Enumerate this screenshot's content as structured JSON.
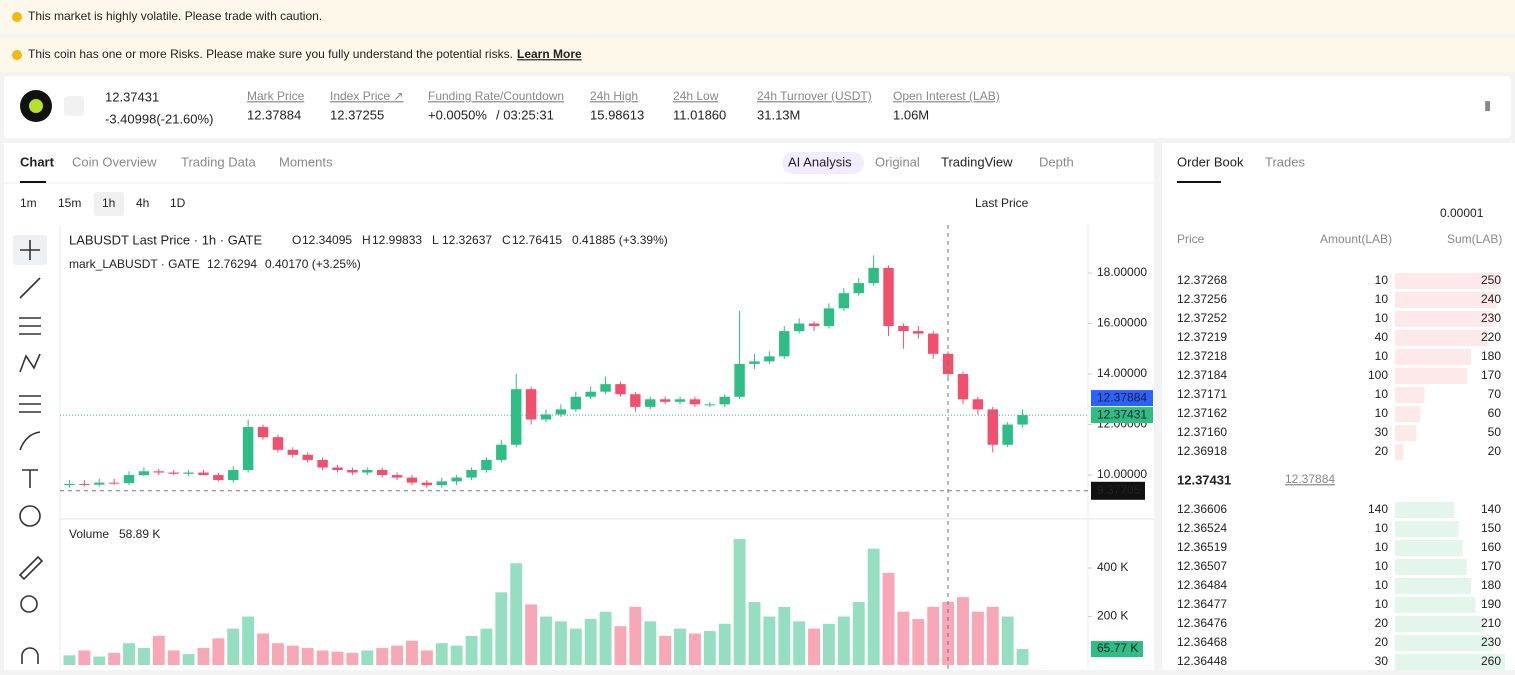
{
  "banners": {
    "volatile": "This market is highly volatile. Please trade with caution.",
    "risk": "This coin has one or more Risks. Please make sure you fully understand the potential risks.",
    "learn_more": "Learn More"
  },
  "ticker": {
    "price": "12.37431",
    "change": "-3.40998(-21.60%)",
    "stats": [
      {
        "label": "Mark Price",
        "value": "12.37884"
      },
      {
        "label": "Index Price ↗",
        "value": "12.37255"
      },
      {
        "label": "Funding Rate/Countdown",
        "value": "+0.0050%",
        "extra": "/ 03:25:31"
      },
      {
        "label": "24h High",
        "value": "15.98613"
      },
      {
        "label": "24h Low",
        "value": "11.01860"
      },
      {
        "label": "24h Turnover (USDT)",
        "value": "31.13M"
      },
      {
        "label": "Open Interest (LAB)",
        "value": "1.06M"
      }
    ]
  },
  "tabs": [
    "Chart",
    "Coin Overview",
    "Trading Data",
    "Moments"
  ],
  "views": [
    "AI Analysis",
    "Original",
    "TradingView",
    "Depth"
  ],
  "intervals": [
    "1m",
    "15m",
    "1h",
    "4h",
    "1D"
  ],
  "price_source": "Last Price",
  "legend": {
    "title": "LABUSDT Last Price · 1h · GATE",
    "ohlc": [
      {
        "key": "O",
        "value": "12.34095"
      },
      {
        "key": "H",
        "value": "12.99833"
      },
      {
        "key": "L",
        "value": "12.32637"
      },
      {
        "key": "C",
        "value": "12.76415"
      }
    ],
    "change": "0.41885 (+3.39%)",
    "mark": "mark_LABUSDT · GATE",
    "mark_value": "12.76294",
    "mark_change": "0.40170 (+3.25%)",
    "volume": "Volume",
    "volume_value": "58.89 K"
  },
  "chart_data": {
    "type": "candlestick",
    "up_color": "#2ebd85",
    "down_color": "#f0506e",
    "mark_color": "#2962ff",
    "open": [
      9.6,
      9.65,
      9.62,
      9.7,
      9.68,
      10.0,
      10.15,
      10.1,
      10.05,
      10.1,
      10.0,
      9.8,
      10.2,
      11.9,
      11.5,
      11.0,
      10.8,
      10.6,
      10.3,
      10.2,
      10.1,
      10.2,
      10.0,
      9.9,
      9.7,
      9.6,
      9.75,
      9.9,
      10.2,
      10.6,
      11.2,
      13.4,
      12.2,
      12.4,
      12.6,
      13.1,
      13.3,
      13.6,
      13.2,
      12.7,
      13.0,
      12.9,
      13.0,
      12.8,
      12.8,
      13.1,
      14.4,
      14.5,
      14.7,
      15.7,
      16.0,
      15.9,
      16.6,
      17.2,
      17.6,
      18.2,
      15.9,
      15.7,
      15.6,
      14.8,
      14.0,
      13.0,
      12.6,
      11.2,
      12.0
    ],
    "high": [
      9.8,
      9.8,
      9.85,
      9.85,
      10.15,
      10.3,
      10.25,
      10.2,
      10.2,
      10.2,
      10.1,
      10.35,
      12.2,
      12.0,
      11.6,
      11.1,
      10.9,
      10.7,
      10.4,
      10.3,
      10.3,
      10.3,
      10.1,
      10.0,
      9.8,
      9.9,
      10.0,
      10.3,
      10.7,
      11.4,
      14.0,
      13.5,
      12.6,
      12.8,
      13.3,
      13.5,
      13.9,
      13.7,
      13.3,
      13.1,
      13.1,
      13.1,
      13.1,
      12.9,
      13.2,
      16.5,
      14.8,
      14.9,
      15.9,
      16.2,
      16.1,
      16.8,
      17.4,
      17.8,
      18.7,
      18.3,
      16.0,
      15.9,
      15.7,
      14.9,
      14.1,
      13.1,
      12.7,
      12.1,
      12.6
    ],
    "low": [
      9.5,
      9.55,
      9.55,
      9.6,
      9.6,
      9.95,
      10.0,
      10.0,
      9.95,
      10.0,
      9.75,
      9.7,
      10.1,
      11.4,
      10.9,
      10.7,
      10.5,
      10.2,
      10.1,
      10.0,
      10.0,
      9.9,
      9.8,
      9.6,
      9.5,
      9.5,
      9.6,
      9.8,
      10.1,
      10.5,
      11.1,
      12.0,
      12.1,
      12.3,
      12.5,
      13.0,
      13.2,
      13.1,
      12.5,
      12.6,
      12.8,
      12.8,
      12.7,
      12.7,
      12.7,
      13.0,
      14.2,
      14.4,
      14.6,
      15.6,
      15.7,
      15.8,
      16.5,
      17.1,
      17.5,
      15.5,
      15.0,
      15.4,
      14.6,
      13.8,
      12.8,
      12.4,
      10.9,
      11.1,
      11.9
    ],
    "close": [
      9.65,
      9.62,
      9.7,
      9.68,
      10.0,
      10.15,
      10.1,
      10.05,
      10.1,
      10.0,
      9.8,
      10.2,
      11.9,
      11.5,
      11.0,
      10.8,
      10.6,
      10.3,
      10.2,
      10.1,
      10.2,
      10.0,
      9.9,
      9.7,
      9.6,
      9.75,
      9.9,
      10.2,
      10.6,
      11.2,
      13.4,
      12.2,
      12.4,
      12.6,
      13.1,
      13.3,
      13.6,
      13.2,
      12.7,
      13.0,
      12.9,
      13.0,
      12.8,
      12.8,
      13.1,
      14.4,
      14.5,
      14.7,
      15.7,
      16.0,
      15.9,
      16.6,
      17.2,
      17.6,
      18.2,
      15.9,
      15.7,
      15.6,
      14.8,
      14.0,
      13.0,
      12.6,
      11.2,
      12.0,
      12.37431
    ],
    "volume": [
      40,
      60,
      35,
      50,
      90,
      70,
      120,
      60,
      45,
      70,
      110,
      150,
      200,
      130,
      90,
      80,
      70,
      60,
      55,
      50,
      60,
      70,
      80,
      100,
      60,
      90,
      80,
      120,
      150,
      300,
      420,
      250,
      200,
      180,
      150,
      190,
      220,
      160,
      240,
      180,
      120,
      150,
      130,
      140,
      170,
      520,
      260,
      200,
      240,
      180,
      150,
      170,
      200,
      260,
      480,
      380,
      220,
      190,
      240,
      260,
      280,
      220,
      240,
      200,
      65.77
    ],
    "volume_label": "65.77 K",
    "ylim": [
      8.3,
      19.9
    ],
    "yticks": [
      {
        "value": 10,
        "label": "10.00000"
      },
      {
        "value": 12,
        "label": "12.00000"
      },
      {
        "value": 14,
        "label": "14.00000"
      },
      {
        "value": 16,
        "label": "16.00000"
      },
      {
        "value": 18,
        "label": "18.00000"
      }
    ],
    "volume_ylim": [
      0,
      590
    ],
    "volume_yticks": [
      {
        "value": 200,
        "label": "200 K"
      },
      {
        "value": 400,
        "label": "400 K"
      }
    ],
    "last_price": 12.37431,
    "mark_price": 12.37884,
    "crosshair_price": 9.37705
  },
  "order_book": {
    "tabs": [
      "Order Book",
      "Trades"
    ],
    "precision": "0.00001",
    "headers": [
      "Price",
      "Amount(LAB)",
      "Sum(LAB)"
    ],
    "asks": {
      "price": [
        "12.37268",
        "12.37256",
        "12.37252",
        "12.37219",
        "12.37218",
        "12.37184",
        "12.37171",
        "12.37162",
        "12.37160",
        "12.36918"
      ],
      "amount": [
        10,
        10,
        10,
        40,
        10,
        100,
        10,
        10,
        30,
        20
      ],
      "sum": [
        250,
        240,
        230,
        220,
        180,
        170,
        70,
        60,
        50,
        20
      ]
    },
    "mid": "12.37431",
    "mid_mark": "12.37884",
    "bids": {
      "price": [
        "12.36606",
        "12.36524",
        "12.36519",
        "12.36507",
        "12.36484",
        "12.36477",
        "12.36476",
        "12.36468",
        "12.36448"
      ],
      "amount": [
        140,
        10,
        10,
        10,
        10,
        10,
        20,
        20,
        30
      ],
      "sum": [
        140,
        150,
        160,
        170,
        180,
        190,
        210,
        230,
        260
      ]
    }
  }
}
